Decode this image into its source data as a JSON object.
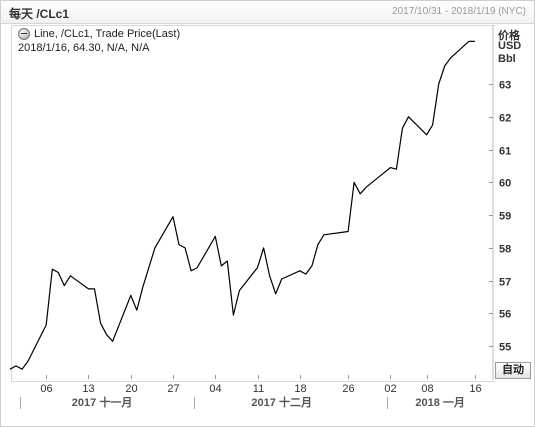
{
  "header": {
    "title": "每天 /CLc1",
    "date_range": "2017/10/31 - 2018/1/19 (NYC)"
  },
  "legend": {
    "series_label": "Line, /CLc1, Trade Price(Last)",
    "detail": "2018/1/16, 64.30, N/A, N/A"
  },
  "units": {
    "line1": "价格",
    "line2": "USD",
    "line3": "Bbl"
  },
  "auto_button": "自动",
  "chart_data": {
    "type": "line",
    "title": "",
    "series": [
      {
        "name": "/CLc1",
        "points": [
          [
            "2017-10-31",
            54.3
          ],
          [
            "2017-11-01",
            54.4
          ],
          [
            "2017-11-02",
            54.3
          ],
          [
            "2017-11-03",
            54.55
          ],
          [
            "2017-11-06",
            55.65
          ],
          [
            "2017-11-07",
            57.35
          ],
          [
            "2017-11-08",
            57.25
          ],
          [
            "2017-11-09",
            56.85
          ],
          [
            "2017-11-10",
            57.15
          ],
          [
            "2017-11-13",
            56.75
          ],
          [
            "2017-11-14",
            56.75
          ],
          [
            "2017-11-15",
            55.7
          ],
          [
            "2017-11-16",
            55.35
          ],
          [
            "2017-11-17",
            55.15
          ],
          [
            "2017-11-20",
            56.55
          ],
          [
            "2017-11-21",
            56.1
          ],
          [
            "2017-11-22",
            56.8
          ],
          [
            "2017-11-24",
            58.0
          ],
          [
            "2017-11-27",
            58.95
          ],
          [
            "2017-11-28",
            58.1
          ],
          [
            "2017-11-29",
            58.0
          ],
          [
            "2017-11-30",
            57.3
          ],
          [
            "2017-12-01",
            57.4
          ],
          [
            "2017-12-04",
            58.35
          ],
          [
            "2017-12-05",
            57.45
          ],
          [
            "2017-12-06",
            57.6
          ],
          [
            "2017-12-07",
            55.95
          ],
          [
            "2017-12-08",
            56.7
          ],
          [
            "2017-12-11",
            57.4
          ],
          [
            "2017-12-12",
            58.0
          ],
          [
            "2017-12-13",
            57.15
          ],
          [
            "2017-12-14",
            56.6
          ],
          [
            "2017-12-15",
            57.05
          ],
          [
            "2017-12-18",
            57.3
          ],
          [
            "2017-12-19",
            57.2
          ],
          [
            "2017-12-20",
            57.45
          ],
          [
            "2017-12-21",
            58.1
          ],
          [
            "2017-12-22",
            58.4
          ],
          [
            "2017-12-26",
            58.5
          ],
          [
            "2017-12-27",
            60.0
          ],
          [
            "2017-12-28",
            59.65
          ],
          [
            "2017-12-29",
            59.85
          ],
          [
            "2018-01-02",
            60.45
          ],
          [
            "2018-01-03",
            60.4
          ],
          [
            "2018-01-04",
            61.65
          ],
          [
            "2018-01-05",
            62.0
          ],
          [
            "2018-01-08",
            61.45
          ],
          [
            "2018-01-09",
            61.75
          ],
          [
            "2018-01-10",
            63.0
          ],
          [
            "2018-01-11",
            63.55
          ],
          [
            "2018-01-12",
            63.8
          ],
          [
            "2018-01-15",
            64.3
          ],
          [
            "2018-01-16",
            64.3
          ]
        ]
      }
    ],
    "x_ticks": [
      [
        "2017-11-06",
        "06"
      ],
      [
        "2017-11-13",
        "13"
      ],
      [
        "2017-11-20",
        "20"
      ],
      [
        "2017-11-27",
        "27"
      ],
      [
        "2017-12-04",
        "04"
      ],
      [
        "2017-12-11",
        "11"
      ],
      [
        "2017-12-18",
        "18"
      ],
      [
        "2017-12-26",
        "26"
      ],
      [
        "2018-01-02",
        "02"
      ],
      [
        "2018-01-08",
        "08"
      ],
      [
        "2018-01-16",
        "16"
      ]
    ],
    "x_groups": [
      {
        "label": "2017 十一月",
        "start": "2017-10-31",
        "end": "2017-11-30"
      },
      {
        "label": "2017 十二月",
        "start": "2017-12-01",
        "end": "2017-12-29"
      },
      {
        "label": "2018 一月",
        "start": "2018-01-02",
        "end": "2018-01-19"
      }
    ],
    "y_ticks": [
      55,
      56,
      57,
      58,
      59,
      60,
      61,
      62,
      63
    ],
    "ylim": [
      54.0,
      64.8
    ],
    "xlim": [
      "2017-10-31",
      "2018-01-19"
    ],
    "grid": false,
    "line_color": "#000000"
  }
}
